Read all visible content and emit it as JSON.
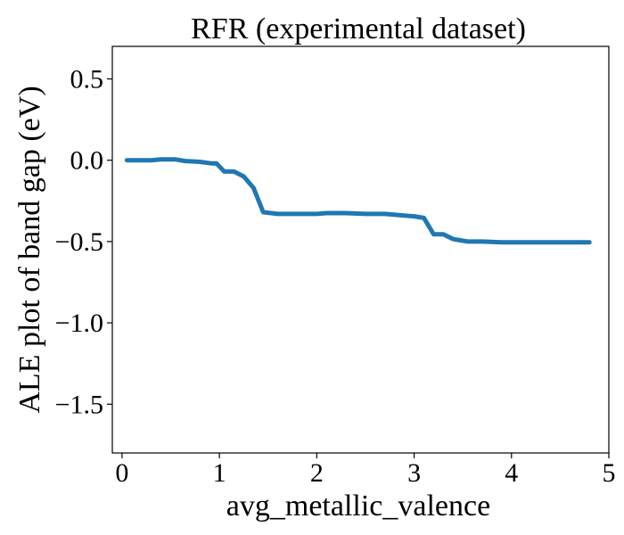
{
  "chart_data": {
    "type": "line",
    "title": "RFR (experimental dataset)",
    "xlabel": "avg_metallic_valence",
    "ylabel": "ALE plot of band gap (eV)",
    "xlim": [
      -0.1,
      5.0
    ],
    "ylim": [
      -1.8,
      0.7
    ],
    "xticks": [
      0,
      1,
      2,
      3,
      4,
      5
    ],
    "xtick_labels": [
      "0",
      "1",
      "2",
      "3",
      "4",
      "5"
    ],
    "yticks": [
      0.5,
      0.0,
      -0.5,
      -1.0,
      -1.5
    ],
    "ytick_labels": [
      "0.5",
      "0.0",
      "−0.5",
      "−1.0",
      "−1.5"
    ],
    "grid": false,
    "series": [
      {
        "color": "#1f77b4",
        "x": [
          0.05,
          0.2,
          0.3,
          0.4,
          0.55,
          0.65,
          0.8,
          0.92,
          0.97,
          1.05,
          1.15,
          1.25,
          1.35,
          1.45,
          1.6,
          1.7,
          1.9,
          2.0,
          2.1,
          2.3,
          2.5,
          2.7,
          2.9,
          3.0,
          3.1,
          3.2,
          3.3,
          3.4,
          3.55,
          3.7,
          3.9,
          4.2,
          4.5,
          4.8
        ],
        "y": [
          0.0,
          0.0,
          0.0,
          0.005,
          0.005,
          -0.005,
          -0.01,
          -0.02,
          -0.02,
          -0.07,
          -0.07,
          -0.1,
          -0.17,
          -0.32,
          -0.33,
          -0.33,
          -0.33,
          -0.33,
          -0.325,
          -0.325,
          -0.33,
          -0.33,
          -0.34,
          -0.345,
          -0.355,
          -0.455,
          -0.455,
          -0.485,
          -0.5,
          -0.5,
          -0.505,
          -0.505,
          -0.505,
          -0.505
        ]
      }
    ]
  }
}
